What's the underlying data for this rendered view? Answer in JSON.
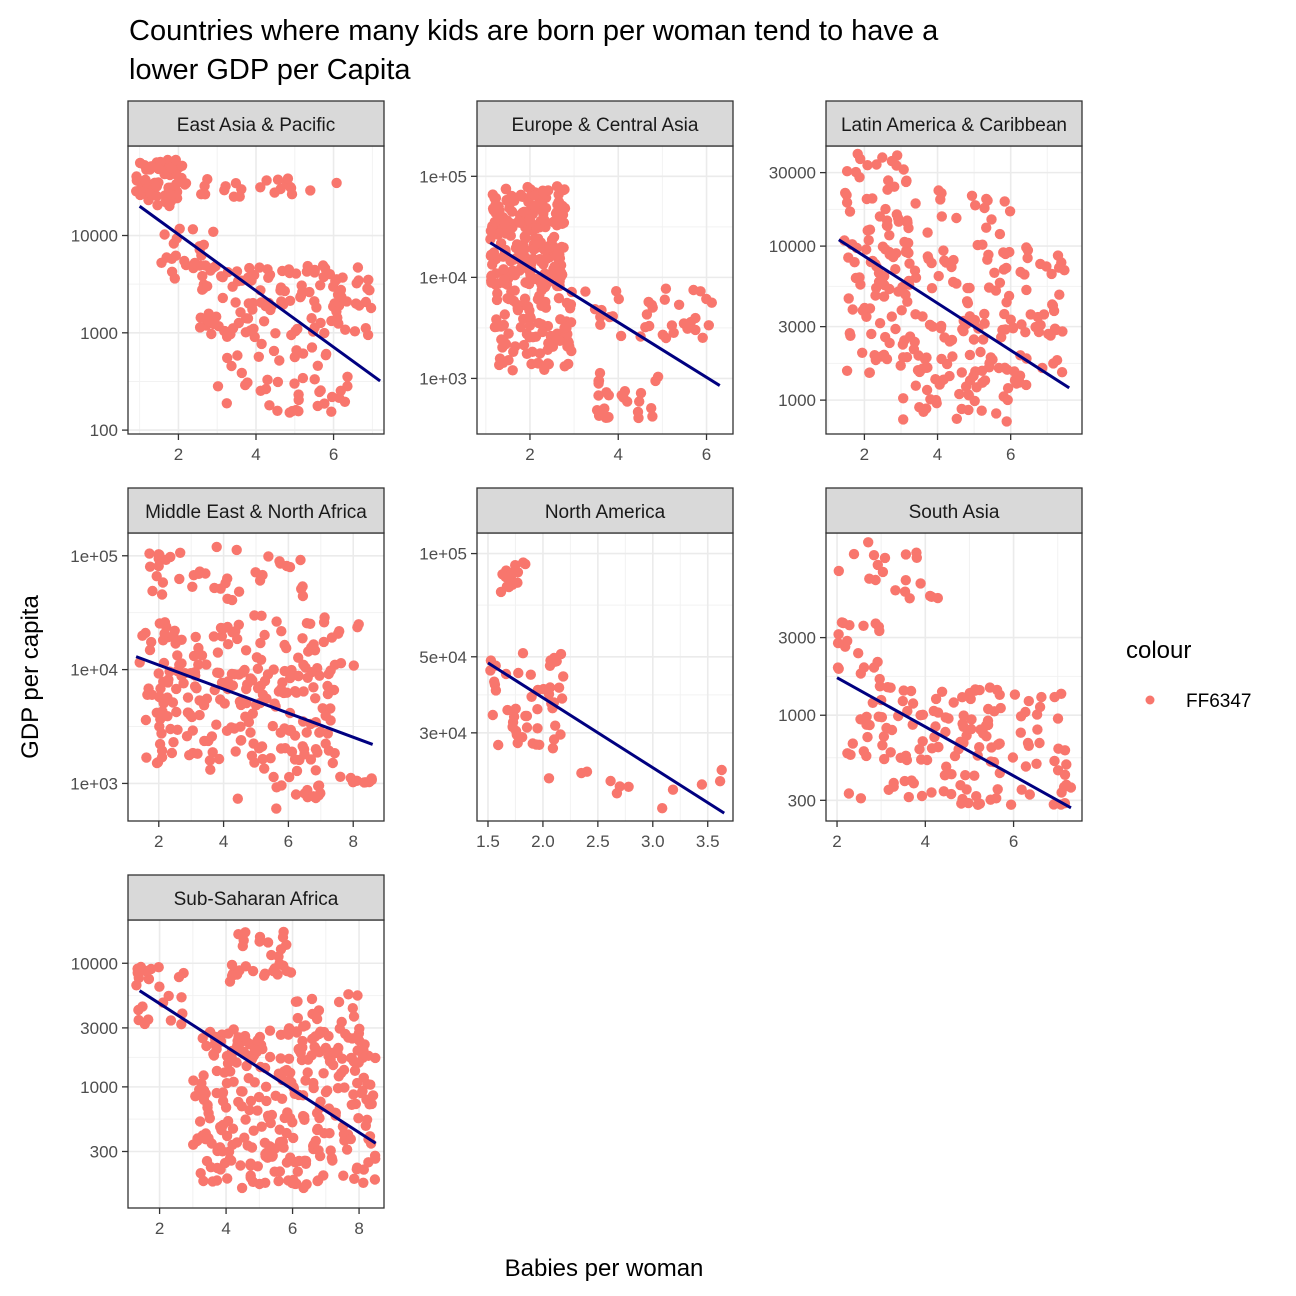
{
  "chart_data": {
    "type": "scatter",
    "title": "Countries where many kids are born per woman tend to have a lower GDP per Capita",
    "xlabel": "Babies per woman",
    "ylabel": "GDP per capita",
    "y_scale": "log10",
    "facet_scales": "free",
    "grid": true,
    "legend": {
      "title": "colour",
      "entries": [
        {
          "label": "FF6347",
          "color": "#F8766D"
        }
      ],
      "placement": "right"
    },
    "colors": {
      "points": "#F8766D",
      "trend": "#000080",
      "strip_bg": "#D9D9D9",
      "grid": "#EBEBEB",
      "panel_border": "#333333"
    },
    "panels": [
      {
        "label": "East Asia & Pacific",
        "xlim": [
          0.7,
          7.3
        ],
        "ylim_log10": [
          1.96,
          4.92
        ],
        "xticks": [
          2,
          4,
          6
        ],
        "xtick_labels": [
          "2",
          "4",
          "6"
        ],
        "yticks": [
          100,
          1000,
          10000
        ],
        "ytick_labels": [
          "100",
          "1000",
          "10000"
        ],
        "trend": {
          "x": [
            1.0,
            7.2
          ],
          "y": [
            20000,
            320
          ]
        },
        "clusters": [
          {
            "x": [
              0.9,
              2.2
            ],
            "y": [
              20000,
              60000
            ],
            "n": 60
          },
          {
            "x": [
              2.2,
              6.2
            ],
            "y": [
              25000,
              40000
            ],
            "n": 22
          },
          {
            "x": [
              1.5,
              3.0
            ],
            "y": [
              3000,
              12000
            ],
            "n": 25
          },
          {
            "x": [
              2.5,
              7.0
            ],
            "y": [
              900,
              5000
            ],
            "n": 120
          },
          {
            "x": [
              3.0,
              6.5
            ],
            "y": [
              150,
              800
            ],
            "n": 45
          }
        ]
      },
      {
        "label": "Europe & Central Asia",
        "xlim": [
          0.8,
          6.6
        ],
        "ylim_log10": [
          2.45,
          5.3
        ],
        "xticks": [
          2,
          4,
          6
        ],
        "xtick_labels": [
          "2",
          "4",
          "6"
        ],
        "yticks": [
          1000,
          10000,
          100000
        ],
        "ytick_labels": [
          "1e+03",
          "1e+04",
          "1e+05"
        ],
        "trend": {
          "x": [
            1.1,
            6.3
          ],
          "y": [
            22000,
            850
          ]
        },
        "clusters": [
          {
            "x": [
              1.1,
              2.8
            ],
            "y": [
              8000,
              80000
            ],
            "n": 220
          },
          {
            "x": [
              1.2,
              3.0
            ],
            "y": [
              1200,
              8000
            ],
            "n": 90
          },
          {
            "x": [
              3.0,
              6.3
            ],
            "y": [
              2500,
              8000
            ],
            "n": 35
          },
          {
            "x": [
              3.5,
              5.0
            ],
            "y": [
              400,
              1200
            ],
            "n": 25
          }
        ]
      },
      {
        "label": "Latin America & Caribbean",
        "xlim": [
          0.95,
          7.95
        ],
        "ylim_log10": [
          2.78,
          4.65
        ],
        "xticks": [
          2,
          4,
          6
        ],
        "xtick_labels": [
          "2",
          "4",
          "6"
        ],
        "yticks": [
          1000,
          3000,
          10000,
          30000
        ],
        "ytick_labels": [
          "1000",
          "3000",
          "10000",
          "30000"
        ],
        "trend": {
          "x": [
            1.3,
            7.6
          ],
          "y": [
            11000,
            1200
          ]
        },
        "clusters": [
          {
            "x": [
              1.3,
              3.2
            ],
            "y": [
              8000,
              40000
            ],
            "n": 50
          },
          {
            "x": [
              3.0,
              6.0
            ],
            "y": [
              10000,
              25000
            ],
            "n": 20
          },
          {
            "x": [
              1.5,
              7.5
            ],
            "y": [
              1500,
              10000
            ],
            "n": 180
          },
          {
            "x": [
              3.0,
              6.5
            ],
            "y": [
              700,
              1500
            ],
            "n": 40
          }
        ]
      },
      {
        "label": "Middle East & North Africa",
        "xlim": [
          1.05,
          8.95
        ],
        "ylim_log10": [
          2.67,
          5.2
        ],
        "xticks": [
          2,
          4,
          6,
          8
        ],
        "xtick_labels": [
          "2",
          "4",
          "6",
          "8"
        ],
        "yticks": [
          1000,
          10000,
          100000
        ],
        "ytick_labels": [
          "1e+03",
          "1e+04",
          "1e+05"
        ],
        "trend": {
          "x": [
            1.3,
            8.6
          ],
          "y": [
            13000,
            2200
          ]
        },
        "clusters": [
          {
            "x": [
              1.6,
              6.5
            ],
            "y": [
              40000,
              120000
            ],
            "n": 40
          },
          {
            "x": [
              1.4,
              8.3
            ],
            "y": [
              10000,
              30000
            ],
            "n": 70
          },
          {
            "x": [
              1.6,
              7.5
            ],
            "y": [
              1500,
              10000
            ],
            "n": 170
          },
          {
            "x": [
              3.5,
              7.0
            ],
            "y": [
              600,
              1500
            ],
            "n": 20
          },
          {
            "x": [
              7.5,
              8.6
            ],
            "y": [
              1000,
              1200
            ],
            "n": 10
          }
        ]
      },
      {
        "label": "North America",
        "xlim": [
          1.4,
          3.73
        ],
        "ylim_log10": [
          4.22,
          5.06
        ],
        "xticks": [
          1.5,
          2.0,
          2.5,
          3.0,
          3.5
        ],
        "xtick_labels": [
          "1.5",
          "2.0",
          "2.5",
          "3.0",
          "3.5"
        ],
        "yticks": [
          30000,
          50000,
          100000
        ],
        "ytick_labels": [
          "3e+04",
          "5e+04",
          "1e+05"
        ],
        "trend": {
          "x": [
            1.5,
            3.65
          ],
          "y": [
            48000,
            17500
          ]
        },
        "clusters": [
          {
            "x": [
              1.5,
              2.2
            ],
            "y": [
              26000,
              52000
            ],
            "n": 50
          },
          {
            "x": [
              1.6,
              1.85
            ],
            "y": [
              75000,
              95000
            ],
            "n": 14
          },
          {
            "x": [
              2.0,
              3.7
            ],
            "y": [
              18000,
              24000
            ],
            "n": 12
          }
        ]
      },
      {
        "label": "South Asia",
        "xlim": [
          1.75,
          7.55
        ],
        "ylim_log10": [
          2.35,
          4.12
        ],
        "xticks": [
          2,
          4,
          6
        ],
        "xtick_labels": [
          "2",
          "4",
          "6"
        ],
        "yticks": [
          300,
          1000,
          3000
        ],
        "ytick_labels": [
          "300",
          "1000",
          "3000"
        ],
        "trend": {
          "x": [
            2.0,
            7.3
          ],
          "y": [
            1700,
            270
          ]
        },
        "clusters": [
          {
            "x": [
              2.0,
              4.3
            ],
            "y": [
              5000,
              12000
            ],
            "n": 20
          },
          {
            "x": [
              2.0,
              3.0
            ],
            "y": [
              1500,
              4000
            ],
            "n": 20
          },
          {
            "x": [
              2.2,
              7.3
            ],
            "y": [
              280,
              1500
            ],
            "n": 150
          }
        ]
      },
      {
        "label": "Sub-Saharan Africa",
        "xlim": [
          1.05,
          8.75
        ],
        "ylim_log10": [
          2.02,
          4.35
        ],
        "xticks": [
          2,
          4,
          6,
          8
        ],
        "xtick_labels": [
          "2",
          "4",
          "6",
          "8"
        ],
        "yticks": [
          300,
          1000,
          3000,
          10000
        ],
        "ytick_labels": [
          "300",
          "1000",
          "3000",
          "10000"
        ],
        "trend": {
          "x": [
            1.4,
            8.5
          ],
          "y": [
            6000,
            350
          ]
        },
        "clusters": [
          {
            "x": [
              1.3,
              2.8
            ],
            "y": [
              3000,
              10000
            ],
            "n": 25
          },
          {
            "x": [
              4.0,
              6.0
            ],
            "y": [
              7000,
              18000
            ],
            "n": 30
          },
          {
            "x": [
              3.0,
              8.5
            ],
            "y": [
              150,
              3000
            ],
            "n": 300
          },
          {
            "x": [
              6.0,
              8.0
            ],
            "y": [
              1500,
              6000
            ],
            "n": 30
          }
        ]
      }
    ]
  }
}
